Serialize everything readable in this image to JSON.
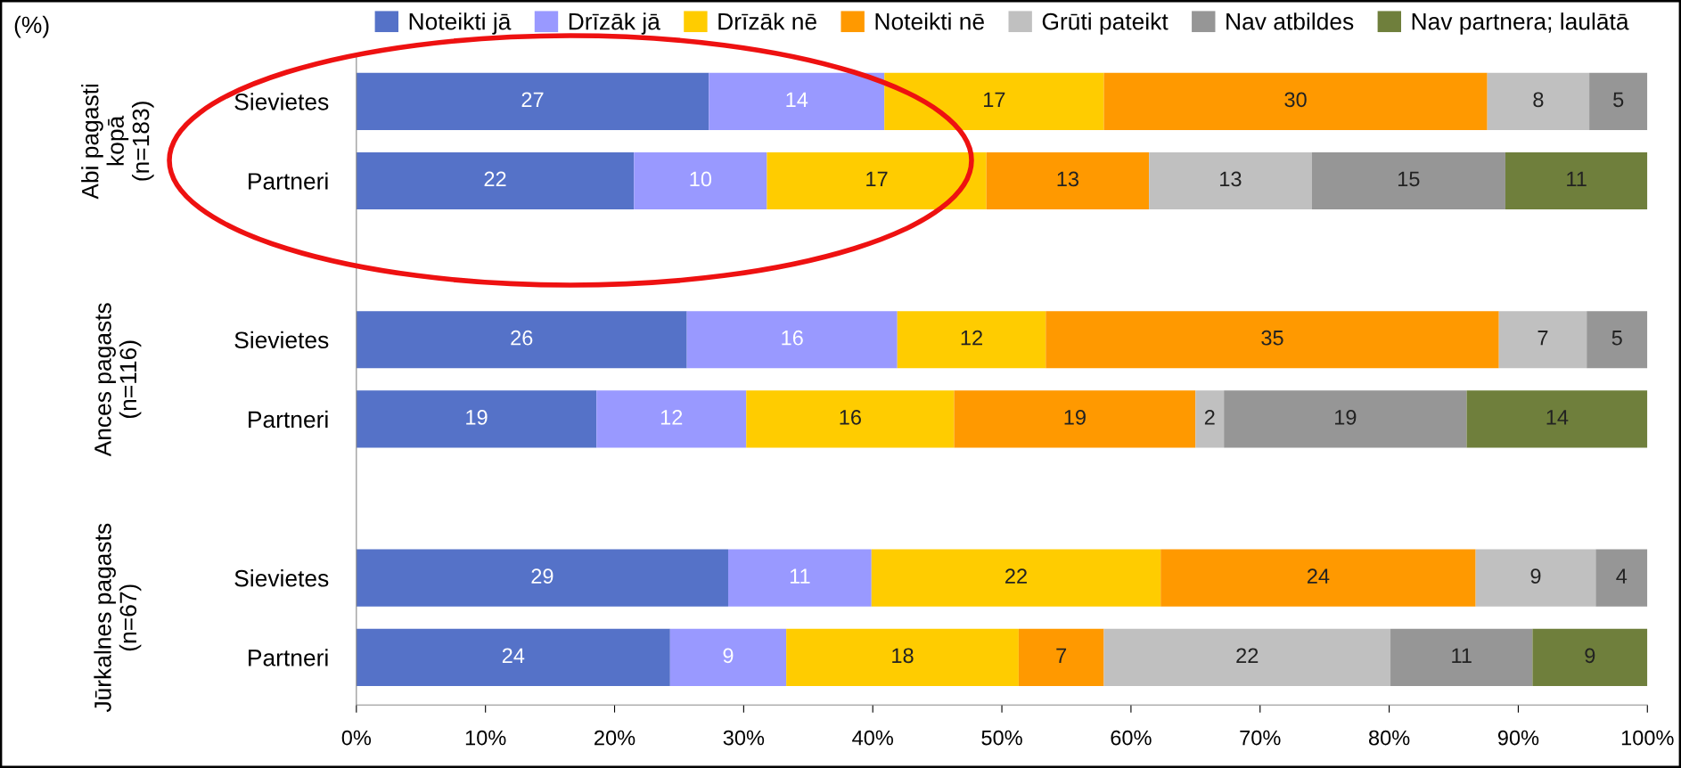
{
  "chart_data": {
    "type": "bar",
    "orientation": "horizontal",
    "stacked": true,
    "data_labels": true,
    "categories": [
      "Sievietes",
      "Partneri",
      null,
      "Sievietes",
      "Partneri",
      null,
      "Sievietes",
      "Partneri"
    ],
    "series": [
      {
        "name": "Noteikti jā",
        "color": "#5572c8",
        "values": [
          27.3,
          21.5,
          null,
          25.6,
          18.6,
          null,
          28.8,
          24.3
        ],
        "value_labels": [
          "27",
          "22",
          null,
          "26",
          "19",
          null,
          "29",
          "24"
        ]
      },
      {
        "name": "Drīzāk jā",
        "color": "#9999ff",
        "values": [
          13.6,
          10.3,
          null,
          16.3,
          11.6,
          null,
          11.1,
          9.0
        ],
        "value_labels": [
          "14",
          "10",
          null,
          "16",
          "12",
          null,
          "11",
          "9"
        ]
      },
      {
        "name": "Drīzāk nē",
        "color": "#ffcc00",
        "values": [
          17.0,
          17.0,
          null,
          11.5,
          16.1,
          null,
          22.4,
          18.0
        ],
        "value_labels": [
          "17",
          "17",
          null,
          "12",
          "16",
          null,
          "22",
          "18"
        ]
      },
      {
        "name": "Noteikti nē",
        "color": "#ff9900",
        "values": [
          29.7,
          12.6,
          null,
          35.1,
          18.7,
          null,
          24.4,
          6.6
        ],
        "value_labels": [
          "30",
          "13",
          null,
          "35",
          "19",
          null,
          "24",
          "7"
        ]
      },
      {
        "name": "Grūti pateikt",
        "color": "#c0c0c0",
        "values": [
          7.9,
          12.6,
          null,
          6.8,
          2.2,
          null,
          9.3,
          22.2
        ],
        "value_labels": [
          "8",
          "13",
          null,
          "7",
          "2",
          null,
          "9",
          "22"
        ]
      },
      {
        "name": "Nav atbildes",
        "color": "#969696",
        "values": [
          4.5,
          15.0,
          null,
          4.7,
          18.8,
          null,
          4.0,
          11.0
        ],
        "value_labels": [
          "5",
          "15",
          null,
          "5",
          "19",
          null,
          "4",
          "11"
        ]
      },
      {
        "name": "Nav partnera; laulātā",
        "color": "#6f7f3c",
        "values": [
          null,
          11.0,
          null,
          null,
          14.0,
          null,
          null,
          8.9
        ],
        "value_labels": [
          null,
          "11",
          null,
          null,
          "14",
          null,
          null,
          "9"
        ]
      }
    ],
    "xlim": [
      0,
      100
    ],
    "xticks": [
      {
        "value": 0,
        "label": "0%"
      },
      {
        "value": 10,
        "label": "10%"
      },
      {
        "value": 20,
        "label": "20%"
      },
      {
        "value": 30,
        "label": "30%"
      },
      {
        "value": 40,
        "label": "40%"
      },
      {
        "value": 50,
        "label": "50%"
      },
      {
        "value": 60,
        "label": "60%"
      },
      {
        "value": 70,
        "label": "70%"
      },
      {
        "value": 80,
        "label": "80%"
      },
      {
        "value": 90,
        "label": "90%"
      },
      {
        "value": 100,
        "label": "100%"
      }
    ],
    "legend": "top",
    "grid": false,
    "annotations": [
      "(%)",
      "Abi pagasti\nkopā\n(n=183)",
      "Ances pagasts\n(n=116)",
      "Jūrkalnes pagasts\n(n=67)"
    ]
  }
}
